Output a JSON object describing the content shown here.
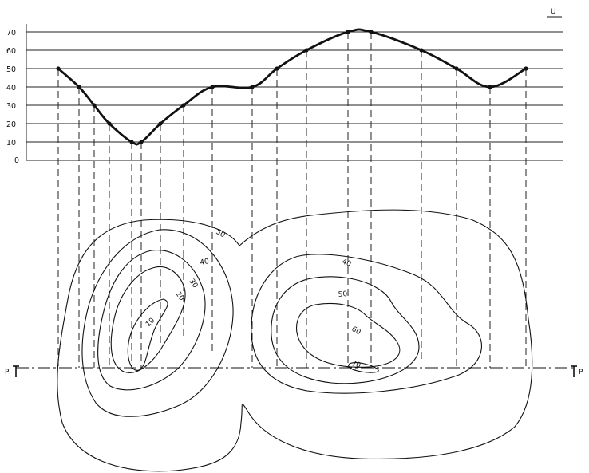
{
  "unit_label": "U",
  "section_label_left": "P",
  "section_label_right": "P",
  "profile_levels": [
    "70",
    "60",
    "50",
    "40",
    "30",
    "20",
    "10",
    "0"
  ],
  "contour_labels": [
    "50",
    "40",
    "30",
    "20",
    "10",
    "40",
    "50",
    "60",
    "70"
  ],
  "profile_points": [
    50,
    40,
    30,
    20,
    10,
    10,
    20,
    30,
    40,
    40,
    50,
    60,
    70,
    70,
    60,
    50,
    40,
    50
  ],
  "colors": {
    "ink": "#111111",
    "paper": "#ffffff"
  }
}
